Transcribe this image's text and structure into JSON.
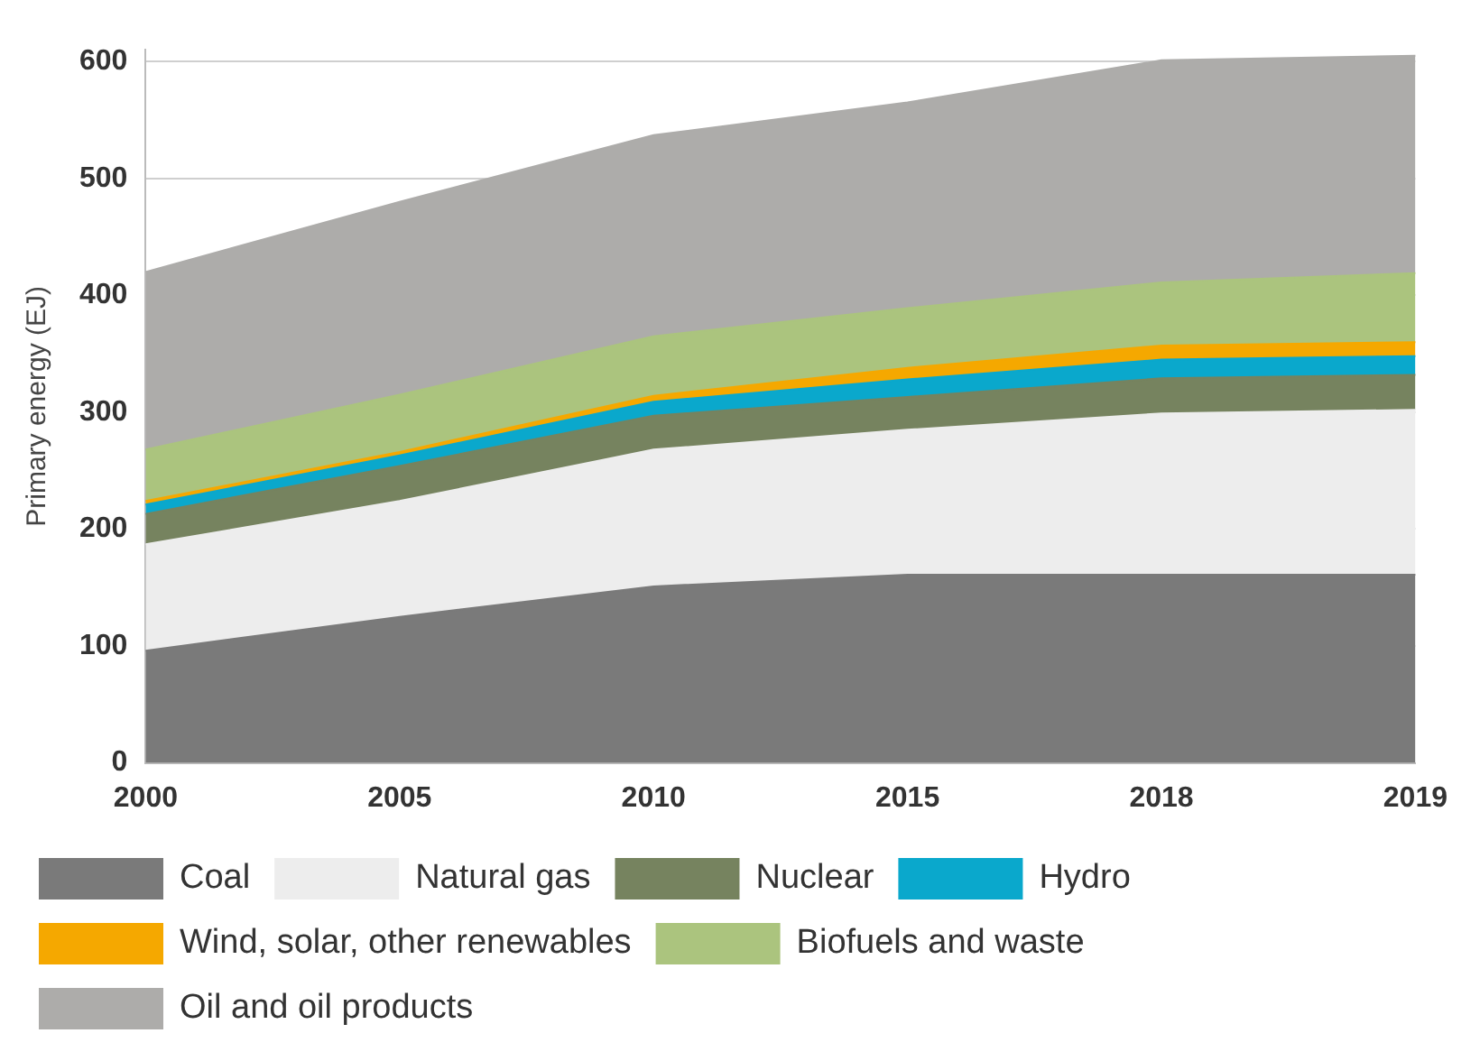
{
  "chart_data": {
    "type": "area",
    "ylabel": "Primary energy (EJ)",
    "categories": [
      "2000",
      "2005",
      "2010",
      "2015",
      "2018",
      "2019"
    ],
    "stacked": true,
    "series": [
      {
        "name": "Coal",
        "color": "#7a7a7a",
        "values": [
          96,
          125,
          151,
          161,
          161,
          161
        ]
      },
      {
        "name": "Natural gas",
        "color": "#ededed",
        "values": [
          91,
          99,
          117,
          124,
          138,
          141
        ]
      },
      {
        "name": "Nuclear",
        "color": "#76835f",
        "values": [
          26,
          30,
          29,
          28,
          30,
          30
        ]
      },
      {
        "name": "Hydro",
        "color": "#0aa8cc",
        "values": [
          8,
          9,
          12,
          15,
          16,
          16
        ]
      },
      {
        "name": "Wind, solar, other renewables",
        "color": "#f5a800",
        "values": [
          3,
          3,
          5,
          10,
          12,
          12
        ]
      },
      {
        "name": "Biofuels and waste",
        "color": "#abc47e",
        "values": [
          44,
          49,
          51,
          51,
          54,
          59
        ]
      },
      {
        "name": "Oil and oil products",
        "color": "#adacaa",
        "values": [
          152,
          165,
          172,
          176,
          190,
          186
        ]
      }
    ],
    "ylim": [
      0,
      610
    ],
    "yticks": [
      0,
      100,
      200,
      300,
      400,
      500,
      600
    ],
    "grid": "y",
    "legend": "bottom"
  }
}
